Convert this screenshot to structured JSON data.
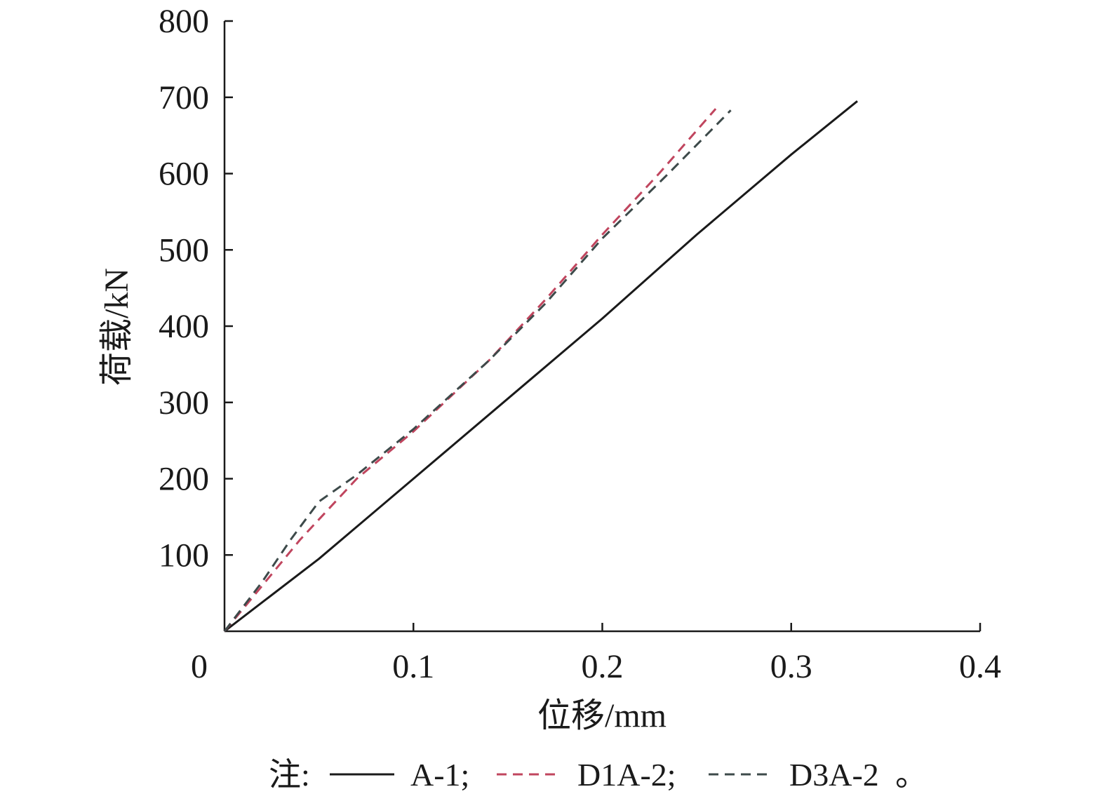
{
  "chart_data": {
    "type": "line",
    "title": "",
    "xlabel": "位移/mm",
    "ylabel": "荷载/kN",
    "xlim": [
      0,
      0.4
    ],
    "ylim": [
      0,
      800
    ],
    "x_ticks": [
      "0",
      "0.1",
      "0.2",
      "0.3",
      "0.4"
    ],
    "x_tick_values": [
      0,
      0.1,
      0.2,
      0.3,
      0.4
    ],
    "y_ticks": [
      "100",
      "200",
      "300",
      "400",
      "500",
      "600",
      "700",
      "800"
    ],
    "y_tick_values": [
      100,
      200,
      300,
      400,
      500,
      600,
      700,
      800
    ],
    "grid": false,
    "legend_position": "bottom",
    "legend_prefix": "注:",
    "legend_end": "。",
    "series": [
      {
        "name": "A-1",
        "legend_text": "A-1;",
        "color": "#1a1a1a",
        "dash": "solid",
        "x": [
          0,
          0.05,
          0.1,
          0.15,
          0.2,
          0.25,
          0.3,
          0.335
        ],
        "y": [
          0,
          95,
          200,
          305,
          410,
          520,
          625,
          695
        ]
      },
      {
        "name": "D1A-2",
        "legend_text": "D1A-2;",
        "color": "#c0455e",
        "dash": "dashed",
        "x": [
          0,
          0.02,
          0.04,
          0.055,
          0.07,
          0.1,
          0.14,
          0.17,
          0.2,
          0.23,
          0.26
        ],
        "y": [
          0,
          60,
          120,
          160,
          200,
          262,
          355,
          435,
          520,
          600,
          685
        ]
      },
      {
        "name": "D3A-2",
        "legend_text": "D3A-2",
        "color": "#3d4a4a",
        "dash": "dashed",
        "x": [
          0,
          0.02,
          0.035,
          0.05,
          0.07,
          0.1,
          0.14,
          0.17,
          0.2,
          0.235,
          0.268
        ],
        "y": [
          0,
          65,
          120,
          170,
          205,
          265,
          355,
          430,
          515,
          600,
          683
        ]
      }
    ]
  }
}
